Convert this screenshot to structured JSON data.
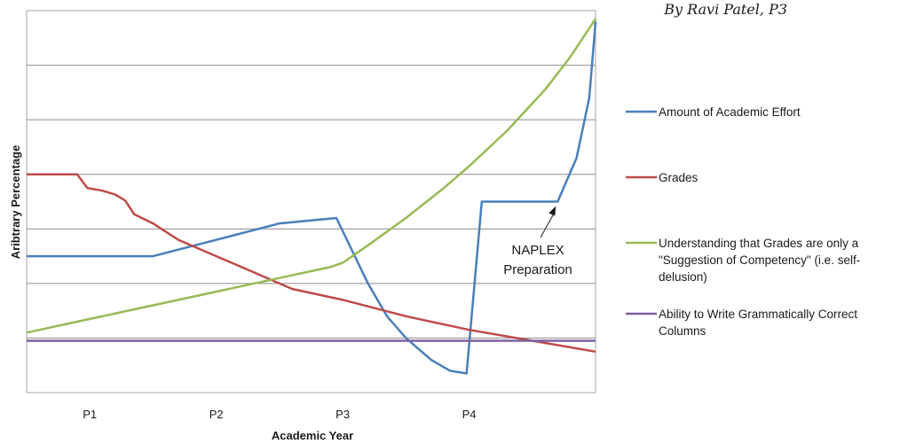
{
  "byline": "By Ravi Patel, P3",
  "chart_data": {
    "type": "line",
    "title": "",
    "xlabel": "Academic Year",
    "ylabel": "Aribtrary Percentage",
    "x_ticks": [
      {
        "label": "P1",
        "x": 1
      },
      {
        "label": "P2",
        "x": 2
      },
      {
        "label": "P3",
        "x": 3
      },
      {
        "label": "P4",
        "x": 4
      }
    ],
    "xlim": [
      0.5,
      5.0
    ],
    "ylim": [
      0,
      70
    ],
    "grid": "horizontal",
    "legend_position": "right",
    "series": [
      {
        "name": "Amount of Academic Effort",
        "color": "#4a7ebb",
        "points": [
          [
            0.5,
            25
          ],
          [
            1.5,
            25
          ],
          [
            2.5,
            31
          ],
          [
            2.95,
            32
          ],
          [
            3.2,
            20
          ],
          [
            3.35,
            14
          ],
          [
            3.5,
            10
          ],
          [
            3.7,
            6
          ],
          [
            3.85,
            4
          ],
          [
            3.98,
            3.5
          ],
          [
            4.1,
            35
          ],
          [
            4.1,
            35
          ],
          [
            4.7,
            35
          ],
          [
            4.85,
            43
          ],
          [
            4.95,
            54
          ],
          [
            5.0,
            68
          ]
        ]
      },
      {
        "name": "Grades",
        "color": "#be4b48",
        "points": [
          [
            0.5,
            40
          ],
          [
            0.9,
            40
          ],
          [
            0.98,
            37.5
          ],
          [
            1.1,
            37
          ],
          [
            1.2,
            36.3
          ],
          [
            1.28,
            35.2
          ],
          [
            1.35,
            32.7
          ],
          [
            1.5,
            31
          ],
          [
            1.7,
            28
          ],
          [
            2.0,
            25
          ],
          [
            2.3,
            22
          ],
          [
            2.6,
            19
          ],
          [
            3.0,
            17
          ],
          [
            3.5,
            14
          ],
          [
            4.0,
            11.5
          ],
          [
            4.5,
            9.5
          ],
          [
            5.0,
            7.5
          ]
        ]
      },
      {
        "name": "Understanding that Grades are only a \"Suggestion of Competency\" (i.e. self-delusion)",
        "color": "#98b954",
        "points": [
          [
            0.5,
            11
          ],
          [
            1.0,
            13.5
          ],
          [
            1.5,
            16
          ],
          [
            2.0,
            18.5
          ],
          [
            2.5,
            21
          ],
          [
            2.9,
            23
          ],
          [
            3.0,
            23.8
          ],
          [
            3.2,
            27
          ],
          [
            3.5,
            32
          ],
          [
            3.8,
            37.5
          ],
          [
            4.0,
            41.5
          ],
          [
            4.3,
            48
          ],
          [
            4.6,
            55.5
          ],
          [
            4.8,
            61.5
          ],
          [
            5.0,
            68.5
          ]
        ]
      },
      {
        "name": "Ability to Write Grammatically Correct Columns",
        "color": "#7d60a0",
        "points": [
          [
            0.5,
            9.5
          ],
          [
            5.0,
            9.5
          ]
        ]
      }
    ],
    "annotations": [
      {
        "lines": [
          "NAPLEX",
          "Preparation"
        ],
        "points_to": [
          4.7,
          35
        ]
      }
    ]
  }
}
